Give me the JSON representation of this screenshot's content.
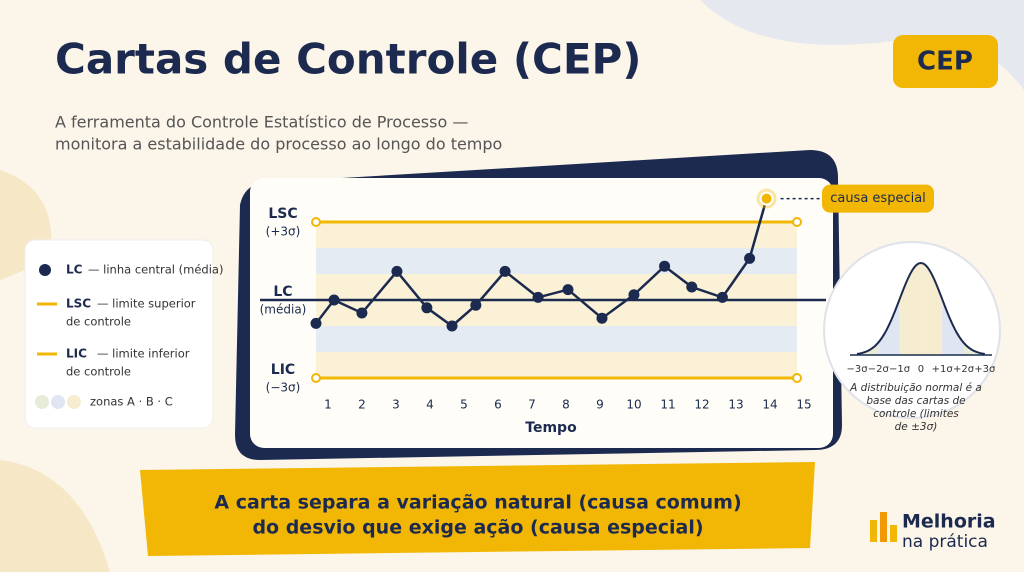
{
  "title": "Cartas de Controle (CEP)",
  "subtitle": [
    "A ferramenta do Controle Estatístico de Processo —",
    "monitora a estabilidade do processo ao longo do tempo"
  ],
  "badge": "CEP",
  "legend": [
    {
      "key": "LC",
      "text": [
        "— linha central (média)"
      ]
    },
    {
      "key": "LSC",
      "text": [
        "— limite superior",
        "de controle"
      ]
    },
    {
      "key": "LIC",
      "text": [
        "— limite inferior",
        "de controle"
      ]
    },
    {
      "key": "",
      "text": [
        "zonas A · B · C"
      ]
    }
  ],
  "chart_data": {
    "type": "line",
    "x_label": "Tempo",
    "x": [
      0.65,
      1.18,
      2.0,
      3.03,
      3.91,
      4.65,
      5.35,
      6.21,
      7.18,
      8.06,
      9.06,
      10.0,
      10.9,
      11.7,
      12.6,
      13.4,
      13.9
    ],
    "values": [
      -0.9,
      0.0,
      -0.5,
      1.1,
      -0.3,
      -1.0,
      -0.2,
      1.1,
      0.1,
      0.4,
      -0.7,
      0.2,
      1.3,
      0.5,
      0.1,
      1.6,
      3.9
    ],
    "color": "#1b2a4e",
    "limit_color": "#f2b705",
    "xlim": [
      0.65,
      15
    ],
    "xticks": [
      1,
      2,
      3,
      4,
      5,
      6,
      7,
      8,
      9,
      10,
      11,
      12,
      13,
      14,
      15
    ],
    "ylim": [
      -3.8,
      4.2
    ],
    "limits": [
      {
        "value": 3,
        "name": "LSC",
        "note": "(+3σ)"
      },
      {
        "value": 0,
        "name": "LC",
        "note": "(média)"
      },
      {
        "value": -3,
        "name": "LIC",
        "note": "(−3σ)"
      }
    ],
    "zones": [
      1,
      2,
      3
    ],
    "annotation": "causa especial"
  },
  "normal": {
    "labels": [
      "−3σ",
      "−2σ",
      "−1σ",
      "0",
      "+1σ",
      "+2σ",
      "+3σ"
    ],
    "caption": [
      "A distribuição normal é a",
      "base das cartas de",
      "controle (limites",
      "de ±3σ)"
    ]
  },
  "banner": [
    "A carta separa a variação natural (causa comum)",
    "do desvio que exige ação (causa especial)"
  ],
  "brand": [
    "Melhoria",
    "na prática"
  ]
}
